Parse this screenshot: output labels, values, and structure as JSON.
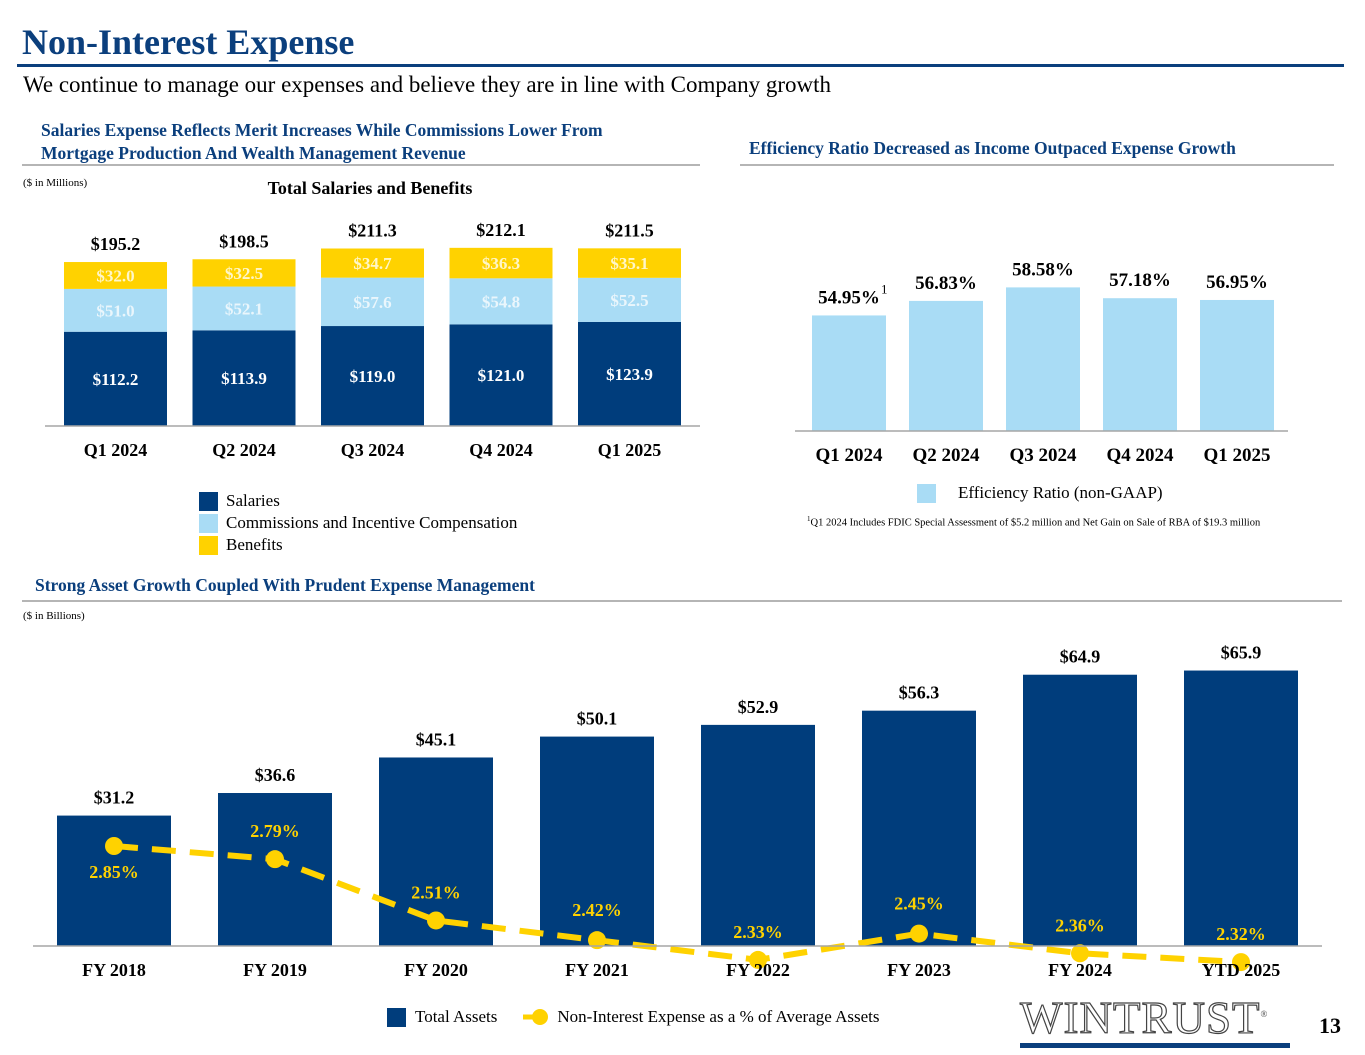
{
  "header": {
    "title": "Non-Interest Expense",
    "subtitle": "We continue to manage our expenses and believe they are in line with Company growth"
  },
  "sections": {
    "salaries": {
      "heading_line1": "Salaries Expense Reflects Merit Increases While Commissions Lower From",
      "heading_line2": "Mortgage Production And Wealth Management Revenue",
      "unit_note": "($ in Millions)"
    },
    "efficiency": {
      "heading": "Efficiency Ratio Decreased as Income Outpaced Expense Growth",
      "footnote_marker": "1",
      "footnote": "Q1 2024 Includes FDIC Special Assessment of $5.2 million and Net Gain on Sale of RBA of $19.3 million"
    },
    "assets": {
      "heading": "Strong Asset Growth Coupled With Prudent Expense Management",
      "unit_note": "($ in Billions)"
    }
  },
  "colors": {
    "navy": "#003d7c",
    "light_blue": "#a9dcf5",
    "gold": "#ffd200",
    "heading_blue": "#0b3f7d",
    "axis_gray": "#a6a6a6"
  },
  "chart_data": [
    {
      "id": "salaries_benefits",
      "type": "bar",
      "stacked": true,
      "title": "Total Salaries and Benefits",
      "unit": "$ in Millions",
      "categories": [
        "Q1 2024",
        "Q2 2024",
        "Q3 2024",
        "Q4 2024",
        "Q1 2025"
      ],
      "series": [
        {
          "name": "Salaries",
          "color": "#003d7c",
          "values": [
            112.2,
            113.9,
            119.0,
            121.0,
            123.9
          ],
          "labels": [
            "$112.2",
            "$113.9",
            "$119.0",
            "$121.0",
            "$123.9"
          ]
        },
        {
          "name": "Commissions and Incentive Compensation",
          "color": "#a9dcf5",
          "values": [
            51.0,
            52.1,
            57.6,
            54.8,
            52.5
          ],
          "labels": [
            "$51.0",
            "$52.1",
            "$57.6",
            "$54.8",
            "$52.5"
          ]
        },
        {
          "name": "Benefits",
          "color": "#ffd200",
          "values": [
            32.0,
            32.5,
            34.7,
            36.3,
            35.1
          ],
          "labels": [
            "$32.0",
            "$32.5",
            "$34.7",
            "$36.3",
            "$35.1"
          ]
        }
      ],
      "totals": [
        195.2,
        198.5,
        211.3,
        212.1,
        211.5
      ],
      "total_labels": [
        "$195.2",
        "$198.5",
        "$211.3",
        "$212.1",
        "$211.5"
      ],
      "legend": [
        "Salaries",
        "Commissions and Incentive Compensation",
        "Benefits"
      ],
      "legend_position": "bottom",
      "grid": false
    },
    {
      "id": "efficiency_ratio",
      "type": "bar",
      "title": "",
      "categories": [
        "Q1 2024",
        "Q2 2024",
        "Q3 2024",
        "Q4 2024",
        "Q1 2025"
      ],
      "series": [
        {
          "name": "Efficiency Ratio (non-GAAP)",
          "color": "#a9dcf5",
          "values": [
            54.95,
            56.83,
            58.58,
            57.18,
            56.95
          ],
          "labels": [
            "54.95%",
            "56.83%",
            "58.58%",
            "57.18%",
            "56.95%"
          ]
        }
      ],
      "annotations": [
        {
          "category": "Q1 2024",
          "superscript": "1"
        }
      ],
      "legend": [
        "Efficiency Ratio (non-GAAP)"
      ],
      "legend_position": "bottom",
      "grid": false
    },
    {
      "id": "assets_expense",
      "type": "bar",
      "combo_line": true,
      "unit": "$ in Billions",
      "categories": [
        "FY 2018",
        "FY 2019",
        "FY 2020",
        "FY 2021",
        "FY 2022",
        "FY 2023",
        "FY 2024",
        "YTD 2025"
      ],
      "series": [
        {
          "name": "Total Assets",
          "type": "bar",
          "color": "#003d7c",
          "values": [
            31.2,
            36.6,
            45.1,
            50.1,
            52.9,
            56.3,
            64.9,
            65.9
          ],
          "labels": [
            "$31.2",
            "$36.6",
            "$45.1",
            "$50.1",
            "$52.9",
            "$56.3",
            "$64.9",
            "$65.9"
          ]
        },
        {
          "name": "Non-Interest Expense as a % of Average Assets",
          "type": "line",
          "style": "dashed",
          "color": "#ffd200",
          "values": [
            2.85,
            2.79,
            2.51,
            2.42,
            2.33,
            2.45,
            2.36,
            2.32
          ],
          "labels": [
            "2.85%",
            "2.79%",
            "2.51%",
            "2.42%",
            "2.33%",
            "2.45%",
            "2.36%",
            "2.32%"
          ]
        }
      ],
      "legend": [
        "Total Assets",
        "Non-Interest Expense as a % of Average Assets"
      ],
      "legend_position": "bottom",
      "grid": false
    }
  ],
  "footer": {
    "logo": "WINTRUST",
    "logo_registered": "®",
    "page_number": "13"
  }
}
